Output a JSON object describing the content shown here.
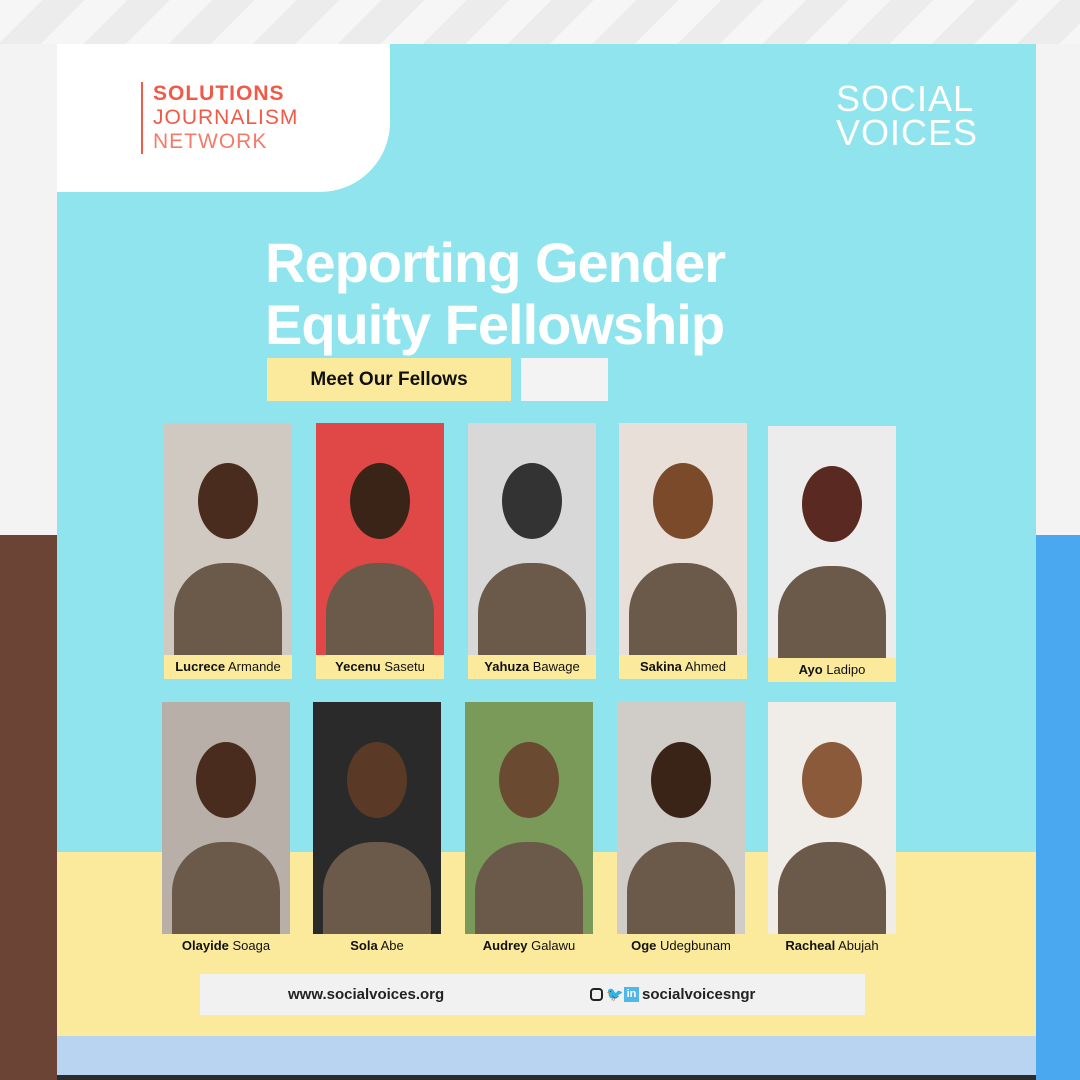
{
  "logos": {
    "left": {
      "line1": "SOLUTIONS",
      "line2": "JOURNALISM",
      "line3": "NETWORK"
    },
    "right": {
      "line1": "SOCIAL",
      "line2": "VOICES"
    }
  },
  "title": {
    "line1": "Reporting Gender",
    "line2": "Equity  Fellowship"
  },
  "subtitle": "Meet Our Fellows",
  "fellows": [
    {
      "first": "Lucrece",
      "last": "Armande"
    },
    {
      "first": "Yecenu",
      "last": "Sasetu"
    },
    {
      "first": "Yahuza",
      "last": "Bawage"
    },
    {
      "first": "Sakina",
      "last": "Ahmed"
    },
    {
      "first": "Ayo",
      "last": "Ladipo"
    },
    {
      "first": "Olayide",
      "last": "Soaga"
    },
    {
      "first": "Sola",
      "last": "Abe"
    },
    {
      "first": "Audrey",
      "last": "Galawu"
    },
    {
      "first": "Oge",
      "last": "Udegbunam"
    },
    {
      "first": "Racheal",
      "last": "Abujah"
    }
  ],
  "footer": {
    "website": "www.socialvoices.org",
    "handle": "socialvoicesngr",
    "icons": [
      "instagram-icon",
      "twitter-icon",
      "linkedin-icon"
    ]
  },
  "colors": {
    "cyan": "#8fe4ee",
    "yellow": "#fbea9b",
    "brand_red": "#f05a47"
  }
}
